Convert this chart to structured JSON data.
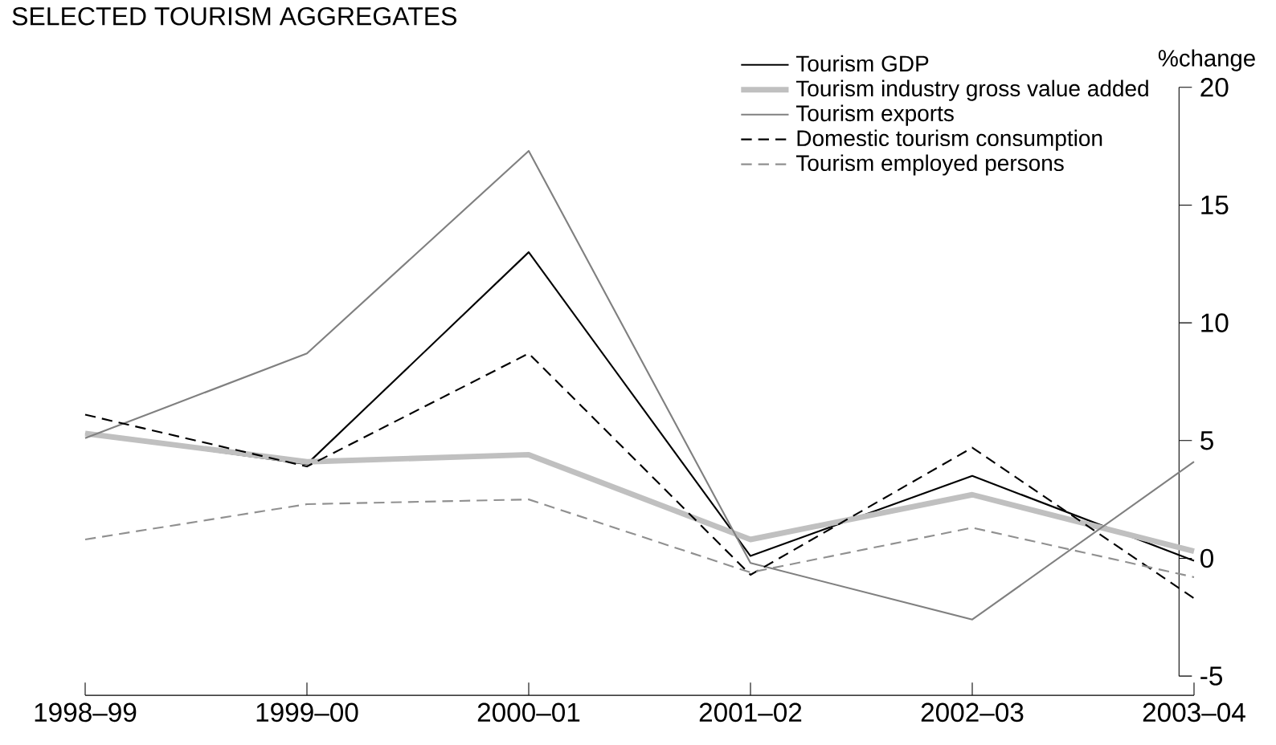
{
  "chart_data": {
    "type": "line",
    "title": "SELECTED TOURISM AGGREGATES",
    "ylabel": "%change",
    "categories": [
      "1998–99",
      "1999–00",
      "2000–01",
      "2001–02",
      "2002–03",
      "2003–04"
    ],
    "ylim": [
      -5,
      20
    ],
    "yticks": [
      -5,
      0,
      5,
      10,
      15,
      20
    ],
    "legend": "top right",
    "series": [
      {
        "name": "Tourism GDP",
        "color": "#000000",
        "line_style": "solid",
        "values": [
          5.3,
          4.0,
          13.0,
          0.1,
          3.5,
          -0.1
        ]
      },
      {
        "name": "Tourism industry gross value added",
        "color": "#c0c0c0",
        "line_style": "solid",
        "values": [
          5.3,
          4.1,
          4.4,
          0.8,
          2.7,
          0.3
        ]
      },
      {
        "name": "Tourism exports",
        "color": "#808080",
        "line_style": "solid",
        "values": [
          5.1,
          8.7,
          17.3,
          -0.2,
          -2.6,
          4.1
        ]
      },
      {
        "name": "Domestic tourism consumption",
        "color": "#000000",
        "line_style": "dashed",
        "values": [
          6.1,
          3.9,
          8.7,
          -0.7,
          4.7,
          -1.7
        ]
      },
      {
        "name": "Tourism employed persons",
        "color": "#909090",
        "line_style": "dashed",
        "values": [
          0.8,
          2.3,
          2.5,
          -0.6,
          1.3,
          -0.8
        ]
      }
    ]
  }
}
